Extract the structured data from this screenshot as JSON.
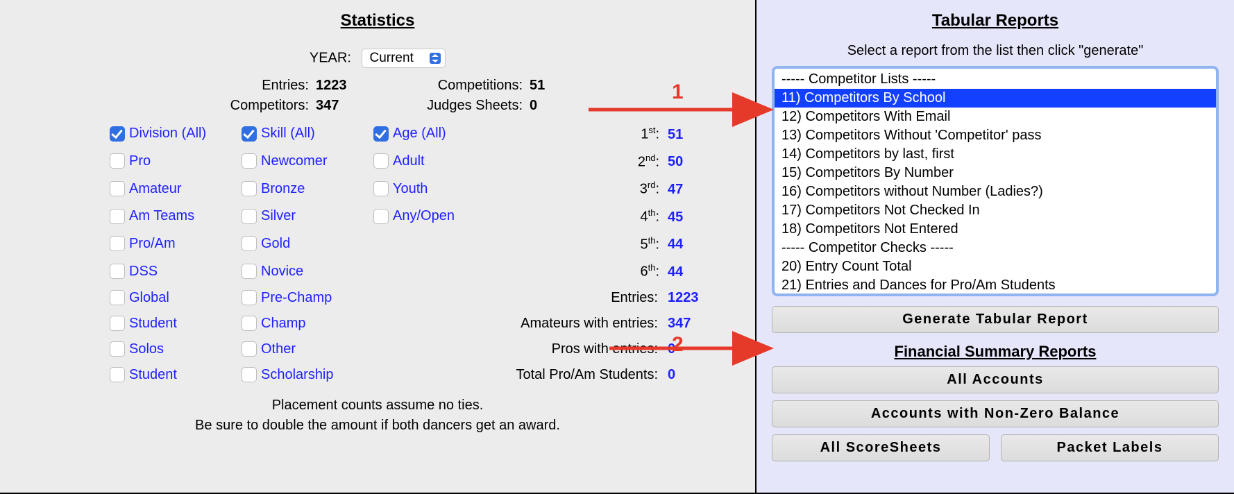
{
  "annotation_color": "#e53a2a",
  "left": {
    "title": "Statistics",
    "year_label": "YEAR:",
    "year_value": "Current",
    "top_stats": {
      "entries_label": "Entries:",
      "entries_value": "1223",
      "competitors_label": "Competitors:",
      "competitors_value": "347",
      "competitions_label": "Competitions:",
      "competitions_value": "51",
      "judges_label": "Judges Sheets:",
      "judges_value": "0"
    },
    "filters": {
      "division": {
        "header": "Division (All)",
        "items": [
          "Pro",
          "Amateur",
          "Am Teams",
          "Pro/Am",
          "DSS",
          "Global",
          "Student",
          "Solos",
          "Student"
        ]
      },
      "skill": {
        "header": "Skill (All)",
        "items": [
          "Newcomer",
          "Bronze",
          "Silver",
          "Gold",
          "Novice",
          "Pre-Champ",
          "Champ",
          "Other",
          "Scholarship"
        ]
      },
      "age": {
        "header": "Age (All)",
        "items": [
          "Adult",
          "Youth",
          "Any/Open"
        ]
      }
    },
    "placements": [
      {
        "ord": "1",
        "suffix": "st",
        "value": "51"
      },
      {
        "ord": "2",
        "suffix": "nd",
        "value": "50"
      },
      {
        "ord": "3",
        "suffix": "rd",
        "value": "47"
      },
      {
        "ord": "4",
        "suffix": "th",
        "value": "45"
      },
      {
        "ord": "5",
        "suffix": "th",
        "value": "44"
      },
      {
        "ord": "6",
        "suffix": "th",
        "value": "44"
      }
    ],
    "right_stats": [
      {
        "label": "Entries:",
        "value": "1223"
      },
      {
        "label": "Amateurs with entries:",
        "value": "347"
      },
      {
        "label": "Pros with entries:",
        "value": "0"
      },
      {
        "label": "Total Pro/Am Students:",
        "value": "0"
      }
    ],
    "footnote1": "Placement counts assume no ties.",
    "footnote2": "Be sure to double the amount if both dancers get an award."
  },
  "right": {
    "title": "Tabular Reports",
    "subtitle": "Select a report from the list then click \"generate\"",
    "list": [
      {
        "text": "----- Competitor Lists -----",
        "selected": false
      },
      {
        "text": "11) Competitors By School",
        "selected": true
      },
      {
        "text": "12) Competitors With Email",
        "selected": false
      },
      {
        "text": "13) Competitors Without 'Competitor' pass",
        "selected": false
      },
      {
        "text": "14) Competitors by last, first",
        "selected": false
      },
      {
        "text": "15) Competitors By Number",
        "selected": false
      },
      {
        "text": "16) Competitors without Number (Ladies?)",
        "selected": false
      },
      {
        "text": "17) Competitors Not Checked In",
        "selected": false
      },
      {
        "text": "18) Competitors Not Entered",
        "selected": false
      },
      {
        "text": "----- Competitor Checks -----",
        "selected": false
      },
      {
        "text": "20) Entry Count Total",
        "selected": false
      },
      {
        "text": "21) Entries and Dances for Pro/Am Students",
        "selected": false
      }
    ],
    "generate_label": "Generate Tabular Report",
    "fin_title": "Financial Summary Reports",
    "btn_all_accounts": "All Accounts",
    "btn_nonzero": "Accounts with Non-Zero Balance",
    "btn_scoresheets": "All ScoreSheets",
    "btn_packet": "Packet Labels"
  },
  "annotations": {
    "one": "1",
    "two": "2"
  }
}
